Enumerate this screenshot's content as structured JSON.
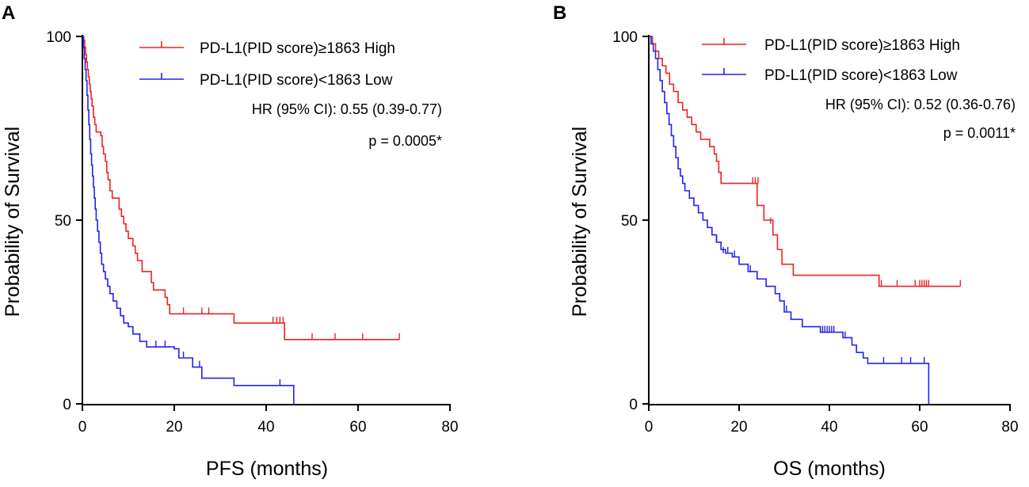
{
  "colors": {
    "high": "#ee2222",
    "low": "#2222ee",
    "axis": "#000000"
  },
  "chart_data": [
    {
      "type": "line",
      "panel": "A",
      "xlabel": "PFS (months)",
      "ylabel": "Probability of Survival",
      "xlim": [
        0,
        80
      ],
      "ylim": [
        0,
        100
      ],
      "xticks": [
        "0",
        "20",
        "40",
        "60",
        "80"
      ],
      "yticks": [
        "0",
        "50",
        "100"
      ],
      "hr_text": "HR (95% CI): 0.55 (0.39-0.77)",
      "p_text": "p = 0.0005*",
      "series": [
        {
          "name": "PD-L1(PID score)≥1863 High",
          "color_key": "high",
          "steps": [
            [
              0,
              100
            ],
            [
              0.3,
              99
            ],
            [
              0.5,
              97
            ],
            [
              0.7,
              95
            ],
            [
              0.9,
              93
            ],
            [
              1.1,
              91
            ],
            [
              1.3,
              89
            ],
            [
              1.5,
              87
            ],
            [
              1.7,
              85
            ],
            [
              1.9,
              83
            ],
            [
              2.1,
              81
            ],
            [
              2.4,
              78
            ],
            [
              2.7,
              76
            ],
            [
              3.0,
              74
            ],
            [
              4.0,
              73
            ],
            [
              4.3,
              70
            ],
            [
              4.6,
              68
            ],
            [
              5.0,
              66
            ],
            [
              5.3,
              63
            ],
            [
              5.6,
              61
            ],
            [
              6.0,
              58
            ],
            [
              6.5,
              56
            ],
            [
              8.0,
              53
            ],
            [
              8.5,
              51
            ],
            [
              9.0,
              49
            ],
            [
              9.5,
              47
            ],
            [
              10.0,
              45
            ],
            [
              11.0,
              43
            ],
            [
              11.5,
              41
            ],
            [
              12.0,
              39
            ],
            [
              13.0,
              36
            ],
            [
              15.0,
              33
            ],
            [
              15.5,
              31
            ],
            [
              18.0,
              29
            ],
            [
              18.5,
              27
            ],
            [
              19.0,
              24.5
            ],
            [
              33.0,
              22
            ],
            [
              44.0,
              17.5
            ],
            [
              69.0,
              17.5
            ]
          ],
          "censors": [
            [
              22,
              24.5
            ],
            [
              26,
              24.5
            ],
            [
              27.5,
              24.5
            ],
            [
              41.5,
              22
            ],
            [
              42.3,
              22
            ],
            [
              43,
              22
            ],
            [
              43.7,
              22
            ],
            [
              50,
              17.5
            ],
            [
              55,
              17.5
            ],
            [
              61,
              17.5
            ],
            [
              69,
              17.5
            ]
          ]
        },
        {
          "name": "PD-L1(PID score)<1863 Low",
          "color_key": "low",
          "steps": [
            [
              0,
              100
            ],
            [
              0.2,
              97
            ],
            [
              0.4,
              94
            ],
            [
              0.6,
              91
            ],
            [
              0.8,
              88
            ],
            [
              1.0,
              84
            ],
            [
              1.2,
              80
            ],
            [
              1.4,
              76
            ],
            [
              1.6,
              72
            ],
            [
              1.8,
              68
            ],
            [
              2.0,
              65
            ],
            [
              2.2,
              62
            ],
            [
              2.4,
              59
            ],
            [
              2.6,
              56
            ],
            [
              2.8,
              53
            ],
            [
              3.0,
              50
            ],
            [
              3.3,
              47
            ],
            [
              3.6,
              44
            ],
            [
              3.9,
              41
            ],
            [
              4.2,
              38
            ],
            [
              4.6,
              36
            ],
            [
              5.0,
              34
            ],
            [
              5.5,
              32
            ],
            [
              6.0,
              30
            ],
            [
              6.7,
              28
            ],
            [
              7.5,
              26
            ],
            [
              8.3,
              24
            ],
            [
              9.0,
              22
            ],
            [
              10.0,
              21
            ],
            [
              11.0,
              19
            ],
            [
              12.5,
              17
            ],
            [
              14.0,
              15.5
            ],
            [
              20.0,
              15
            ],
            [
              21.0,
              12.5
            ],
            [
              24.0,
              10
            ],
            [
              26.0,
              7
            ],
            [
              33.0,
              5
            ],
            [
              46.0,
              0
            ]
          ],
          "censors": [
            [
              16,
              15.5
            ],
            [
              18,
              15.5
            ],
            [
              22,
              12.5
            ],
            [
              25.5,
              10
            ],
            [
              43,
              5
            ]
          ]
        }
      ]
    },
    {
      "type": "line",
      "panel": "B",
      "xlabel": "OS (months)",
      "ylabel": "Probability of Survival",
      "xlim": [
        0,
        80
      ],
      "ylim": [
        0,
        100
      ],
      "xticks": [
        "0",
        "20",
        "40",
        "60",
        "80"
      ],
      "yticks": [
        "0",
        "50",
        "100"
      ],
      "hr_text": "HR (95% CI): 0.52 (0.36-0.76)",
      "p_text": "p = 0.0011*",
      "series": [
        {
          "name": "PD-L1(PID score)≥1863 High",
          "color_key": "high",
          "steps": [
            [
              0,
              100
            ],
            [
              0.8,
              98
            ],
            [
              1.5,
              96
            ],
            [
              2.2,
              94
            ],
            [
              3.0,
              92
            ],
            [
              3.8,
              90
            ],
            [
              4.6,
              87
            ],
            [
              5.5,
              85
            ],
            [
              6.5,
              82
            ],
            [
              7.5,
              80
            ],
            [
              8.5,
              78
            ],
            [
              9.5,
              76
            ],
            [
              10.5,
              74
            ],
            [
              11.5,
              72
            ],
            [
              13.5,
              70
            ],
            [
              14.5,
              68
            ],
            [
              15.0,
              66
            ],
            [
              15.5,
              63
            ],
            [
              16.0,
              60
            ],
            [
              24.0,
              54
            ],
            [
              25.5,
              50
            ],
            [
              27.5,
              46
            ],
            [
              28.5,
              42
            ],
            [
              29.5,
              38
            ],
            [
              32.0,
              35
            ],
            [
              51.0,
              32
            ],
            [
              69.0,
              32
            ]
          ],
          "censors": [
            [
              23,
              60
            ],
            [
              23.6,
              60
            ],
            [
              24.2,
              60
            ],
            [
              27,
              49
            ],
            [
              51.5,
              32
            ],
            [
              55,
              32
            ],
            [
              59,
              32
            ],
            [
              60,
              32
            ],
            [
              60.5,
              32
            ],
            [
              61,
              32
            ],
            [
              61.5,
              32
            ],
            [
              62,
              32
            ],
            [
              69,
              32
            ]
          ]
        },
        {
          "name": "PD-L1(PID score)<1863 Low",
          "color_key": "low",
          "steps": [
            [
              0,
              100
            ],
            [
              0.5,
              98
            ],
            [
              1.0,
              96
            ],
            [
              1.5,
              94
            ],
            [
              2.0,
              91
            ],
            [
              2.5,
              88
            ],
            [
              3.0,
              85
            ],
            [
              3.5,
              82
            ],
            [
              4.0,
              79
            ],
            [
              4.5,
              76
            ],
            [
              5.0,
              73
            ],
            [
              5.5,
              70
            ],
            [
              6.0,
              67
            ],
            [
              6.5,
              64
            ],
            [
              7.0,
              62
            ],
            [
              7.5,
              60
            ],
            [
              8.0,
              58
            ],
            [
              9.0,
              56
            ],
            [
              10.0,
              54
            ],
            [
              11.0,
              52
            ],
            [
              12.0,
              50
            ],
            [
              13.0,
              48
            ],
            [
              14.0,
              46
            ],
            [
              15.0,
              44
            ],
            [
              16.0,
              42
            ],
            [
              17.0,
              41
            ],
            [
              18.5,
              40
            ],
            [
              20.0,
              38
            ],
            [
              22.0,
              36
            ],
            [
              24.0,
              34
            ],
            [
              26.0,
              32
            ],
            [
              28.0,
              30
            ],
            [
              29.0,
              28
            ],
            [
              30.0,
              25
            ],
            [
              31.5,
              23
            ],
            [
              34.0,
              21
            ],
            [
              38.0,
              19.5
            ],
            [
              43.0,
              18
            ],
            [
              45.0,
              16
            ],
            [
              46.0,
              14
            ],
            [
              47.5,
              12.5
            ],
            [
              48.5,
              11
            ],
            [
              62.0,
              11
            ],
            [
              62.0,
              0
            ]
          ],
          "censors": [
            [
              15,
              44
            ],
            [
              16.5,
              41
            ],
            [
              17.5,
              41
            ],
            [
              19,
              40
            ],
            [
              22.5,
              36
            ],
            [
              30.5,
              25
            ],
            [
              38.5,
              19.5
            ],
            [
              39,
              19.5
            ],
            [
              39.5,
              19.5
            ],
            [
              40,
              19.5
            ],
            [
              40.5,
              19.5
            ],
            [
              41,
              19.5
            ],
            [
              43.5,
              18
            ],
            [
              52,
              11
            ],
            [
              56,
              11
            ],
            [
              58,
              11
            ],
            [
              61,
              11
            ]
          ]
        }
      ]
    }
  ]
}
